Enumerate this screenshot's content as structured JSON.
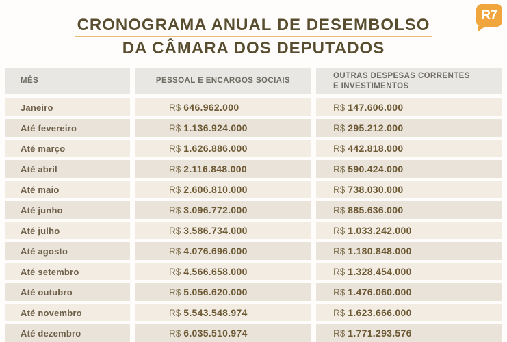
{
  "page": {
    "title_line1": "CRONOGRAMA ANUAL DE DESEMBOLSO",
    "title_line2": "DA CÂMARA DOS DEPUTADOS",
    "logo_text": "R7"
  },
  "colors": {
    "title": "#584d2f",
    "title_underline": "#e6bc76",
    "logo_bg": "#f1a53d",
    "header_bg": "#e8e7e4",
    "row_light": "#f2ece3",
    "row_dark": "#e9e3da",
    "value_text": "#6d5a35"
  },
  "table": {
    "headers": {
      "col1": "MÊS",
      "col2": "PESSOAL E ENCARGOS SOCIAIS",
      "col3": "OUTRAS DESPESAS CORRENTES E INVESTIMENTOS"
    },
    "currency_prefix": "R$",
    "rows": [
      {
        "month": "Janeiro",
        "pessoal": "646.962.000",
        "outras": "147.606.000"
      },
      {
        "month": "Até fevereiro",
        "pessoal": "1.136.924.000",
        "outras": "295.212.000"
      },
      {
        "month": "Até março",
        "pessoal": "1.626.886.000",
        "outras": "442.818.000"
      },
      {
        "month": "Até abril",
        "pessoal": "2.116.848.000",
        "outras": "590.424.000"
      },
      {
        "month": "Até maio",
        "pessoal": "2.606.810.000",
        "outras": "738.030.000"
      },
      {
        "month": "Até junho",
        "pessoal": "3.096.772.000",
        "outras": "885.636.000"
      },
      {
        "month": "Até julho",
        "pessoal": "3.586.734.000",
        "outras": "1.033.242.000"
      },
      {
        "month": "Até agosto",
        "pessoal": "4.076.696.000",
        "outras": "1.180.848.000"
      },
      {
        "month": "Até setembro",
        "pessoal": "4.566.658.000",
        "outras": "1.328.454.000"
      },
      {
        "month": "Até outubro",
        "pessoal": "5.056.620.000",
        "outras": "1.476.060.000"
      },
      {
        "month": "Até novembro",
        "pessoal": "5.543.548.974",
        "outras": "1.623.666.000"
      },
      {
        "month": "Até dezembro",
        "pessoal": "6.035.510.974",
        "outras": "1.771.293.576"
      }
    ]
  },
  "chart_data": {
    "type": "table",
    "title": "Cronograma Anual de Desembolso da Câmara dos Deputados",
    "columns": [
      "Mês",
      "Pessoal e Encargos Sociais (R$)",
      "Outras Despesas Correntes e Investimentos (R$)"
    ],
    "rows": [
      [
        "Janeiro",
        646962000,
        147606000
      ],
      [
        "Até fevereiro",
        1136924000,
        295212000
      ],
      [
        "Até março",
        1626886000,
        442818000
      ],
      [
        "Até abril",
        2116848000,
        590424000
      ],
      [
        "Até maio",
        2606810000,
        738030000
      ],
      [
        "Até junho",
        3096772000,
        885636000
      ],
      [
        "Até julho",
        3586734000,
        1033242000
      ],
      [
        "Até agosto",
        4076696000,
        1180848000
      ],
      [
        "Até setembro",
        4566658000,
        1328454000
      ],
      [
        "Até outubro",
        5056620000,
        1476060000
      ],
      [
        "Até novembro",
        5543548974,
        1623666000
      ],
      [
        "Até dezembro",
        6035510974,
        1771293576
      ]
    ]
  }
}
